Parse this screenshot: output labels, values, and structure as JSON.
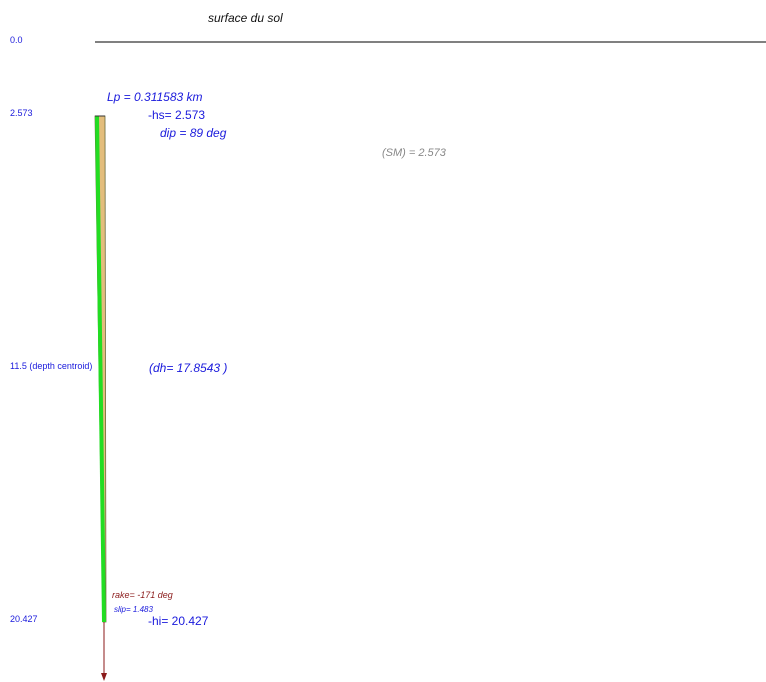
{
  "surface_label": "surface du sol",
  "depth_labels": {
    "top": "0.0",
    "hs": "2.573",
    "centroid": "11.5 (depth centroid)",
    "hi": "20.427"
  },
  "fault_annotations": {
    "lp": "Lp = 0.311583 km",
    "hs": "-hs= 2.573",
    "dip": "dip = 89 deg",
    "sm": "(SM) = 2.573",
    "dh": "(dh= 17.8543 )",
    "rake": "rake= -171 deg",
    "slip": "slip= 1.483",
    "hi": "-hi= 20.427"
  },
  "colors": {
    "fault_plane": "#e3bd7c",
    "fault_edge": "#22dd22",
    "label_blue": "#1a1adc",
    "slip_vector": "#8b1a1a"
  },
  "values": {
    "depth_top_km": 0.0,
    "depth_hs_km": 2.573,
    "depth_centroid_km": 11.5,
    "depth_hi_km": 20.427,
    "dip_deg": 89,
    "rake_deg": -171,
    "slip": 1.483
  }
}
